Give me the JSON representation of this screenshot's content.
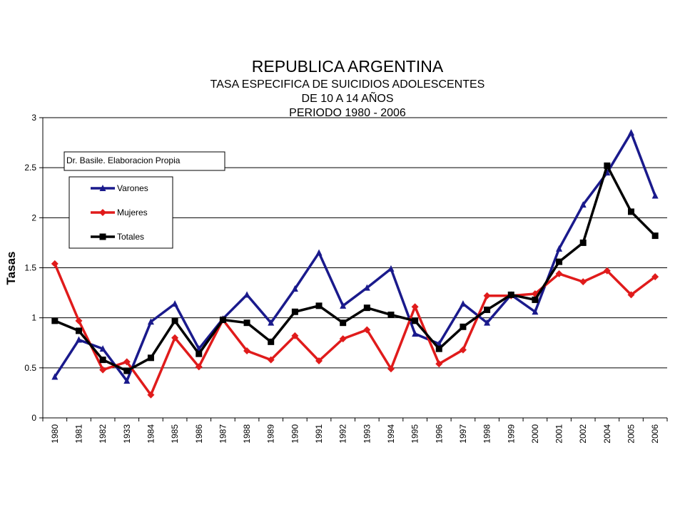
{
  "chart_data": {
    "type": "line",
    "title": "REPUBLICA ARGENTINA",
    "subtitle_lines": [
      "TASA ESPECIFICA DE SUICIDIOS ADOLESCENTES",
      "DE 10 A 14 AÑOS",
      "PERIODO 1980 - 2006"
    ],
    "annotation": "Dr. Basile. Elaboracion Propia",
    "ylabel": "Tasas",
    "xlabel": "",
    "ylim": [
      0,
      3
    ],
    "yticks": [
      "0",
      "0.5",
      "1",
      "1.5",
      "2",
      "2.5",
      "3"
    ],
    "grid": true,
    "legend_placement": "top-left",
    "categories": [
      "1980",
      "1981",
      "1982",
      "1933",
      "1984",
      "1985",
      "1986",
      "1987",
      "1988",
      "1989",
      "1990",
      "1991",
      "1992",
      "1993",
      "1994",
      "1995",
      "1996",
      "1997",
      "1998",
      "1999",
      "2000",
      "2001",
      "2002",
      "2004",
      "2005",
      "2006"
    ],
    "series": [
      {
        "name": "Varones",
        "color": "#1a1a8c",
        "marker": "triangle",
        "values": [
          0.41,
          0.78,
          0.69,
          0.37,
          0.96,
          1.14,
          0.69,
          0.99,
          1.23,
          0.95,
          1.29,
          1.65,
          1.12,
          1.3,
          1.49,
          0.84,
          0.74,
          1.14,
          0.95,
          1.23,
          1.06,
          1.69,
          2.13,
          2.45,
          2.85,
          2.22
        ]
      },
      {
        "name": "Mujeres",
        "color": "#e01b1b",
        "marker": "diamond",
        "values": [
          1.54,
          0.97,
          0.48,
          0.56,
          0.23,
          0.8,
          0.51,
          0.98,
          0.67,
          0.58,
          0.82,
          0.57,
          0.79,
          0.88,
          0.49,
          1.11,
          0.54,
          0.68,
          1.22,
          1.22,
          1.24,
          1.44,
          1.36,
          1.47,
          1.23,
          1.41
        ]
      },
      {
        "name": "Totales",
        "color": "#000000",
        "marker": "square",
        "values": [
          0.97,
          0.87,
          0.58,
          0.47,
          0.6,
          0.97,
          0.64,
          0.98,
          0.95,
          0.76,
          1.06,
          1.12,
          0.95,
          1.1,
          1.03,
          0.97,
          0.69,
          0.91,
          1.08,
          1.23,
          1.18,
          1.56,
          1.75,
          2.52,
          2.06,
          1.82
        ]
      }
    ]
  }
}
